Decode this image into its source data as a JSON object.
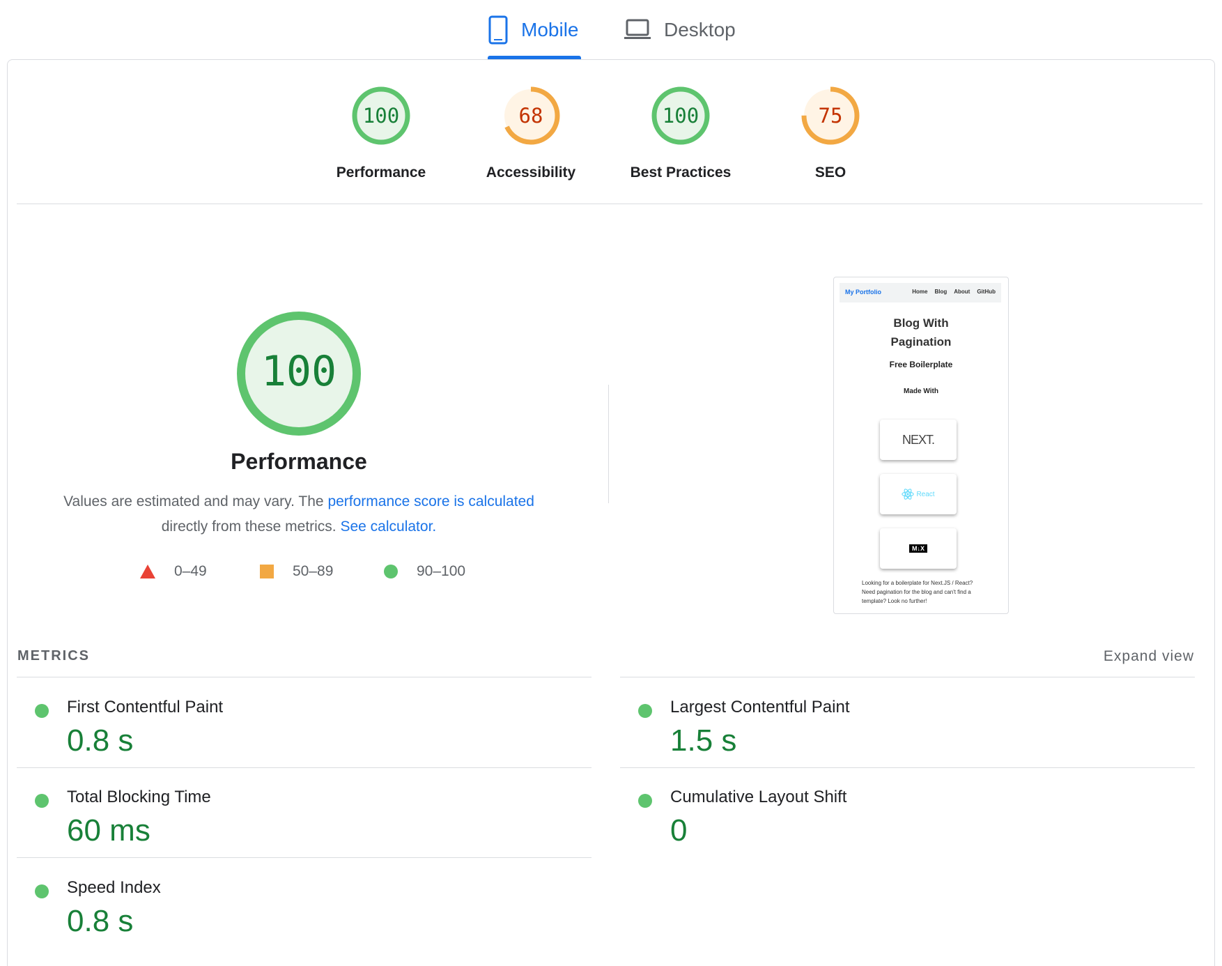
{
  "tabs": {
    "mobile": "Mobile",
    "desktop": "Desktop",
    "mobile_icon": "phone-icon",
    "desktop_icon": "laptop-icon"
  },
  "scores": [
    {
      "value": "100",
      "label": "Performance",
      "score": 100,
      "rating": "pass"
    },
    {
      "value": "68",
      "label": "Accessibility",
      "score": 68,
      "rating": "average"
    },
    {
      "value": "100",
      "label": "Best Practices",
      "score": 100,
      "rating": "pass"
    },
    {
      "value": "75",
      "label": "SEO",
      "score": 75,
      "rating": "average"
    }
  ],
  "performance": {
    "score": "100",
    "title": "Performance",
    "desc_text1": "Values are estimated and may vary. The ",
    "desc_link1": "performance score is calculated",
    "desc_text2": "directly from these metrics. ",
    "desc_link2": "See calculator."
  },
  "legend": [
    {
      "range": "0–49",
      "shape": "triangle",
      "color": "#e94235"
    },
    {
      "range": "50–89",
      "shape": "square",
      "color": "#f2a843"
    },
    {
      "range": "90–100",
      "shape": "circle",
      "color": "#5ec46e"
    }
  ],
  "screenshot": {
    "brand": "My Portfolio",
    "nav": [
      "Home",
      "Blog",
      "About",
      "GitHub"
    ],
    "title_line1": "Blog With",
    "title_line2": "Pagination",
    "subtitle": "Free Boilerplate",
    "made_with": "Made With",
    "logos": [
      "NEXT.",
      "React",
      "M↓X"
    ],
    "footer": "Looking for a boilerplate for Next.JS / React? Need pagination for the blog and can't find a template? Look no further!"
  },
  "metrics": {
    "heading": "METRICS",
    "expand": "Expand view",
    "items": [
      {
        "name": "First Contentful Paint",
        "value": "0.8 s"
      },
      {
        "name": "Largest Contentful Paint",
        "value": "1.5 s"
      },
      {
        "name": "Total Blocking Time",
        "value": "60 ms"
      },
      {
        "name": "Cumulative Layout Shift",
        "value": "0"
      },
      {
        "name": "Speed Index",
        "value": "0.8 s"
      }
    ]
  },
  "colors": {
    "pass": "#5ec46e",
    "pass_fill": "#e8f5e9",
    "pass_text": "#188038",
    "average": "#f2a843",
    "average_fill": "#fff4e5",
    "average_text": "#c33300",
    "accent": "#1a73e8"
  }
}
